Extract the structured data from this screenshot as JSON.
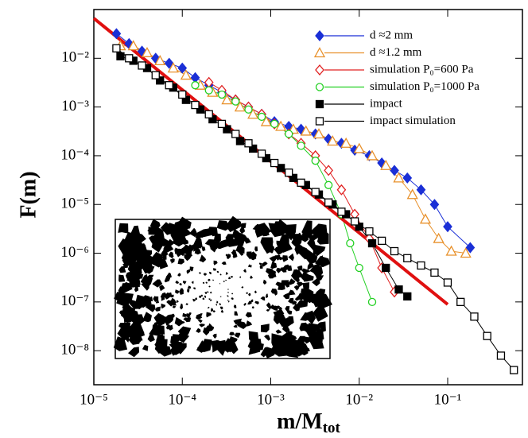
{
  "chart_data": {
    "type": "scatter",
    "log_x": true,
    "log_y": true,
    "xlabel": "m/M",
    "xlabel_sub": "tot",
    "ylabel": "F(m)",
    "xlim": [
      1e-05,
      0.7
    ],
    "ylim": [
      2e-09,
      0.1
    ],
    "xticks": [
      {
        "value": 1e-05,
        "label": "10⁻⁵"
      },
      {
        "value": 0.0001,
        "label": "10⁻⁴"
      },
      {
        "value": 0.001,
        "label": "10⁻³"
      },
      {
        "value": 0.01,
        "label": "10⁻²"
      },
      {
        "value": 0.1,
        "label": "10⁻¹"
      }
    ],
    "yticks": [
      {
        "value": 0.01,
        "label": "10⁻²"
      },
      {
        "value": 0.001,
        "label": "10⁻³"
      },
      {
        "value": 0.0001,
        "label": "10⁻⁴"
      },
      {
        "value": 1e-05,
        "label": "10⁻⁵"
      },
      {
        "value": 1e-06,
        "label": "10⁻⁶"
      },
      {
        "value": 1e-07,
        "label": "10⁻⁷"
      },
      {
        "value": 1e-08,
        "label": "10⁻⁸"
      }
    ],
    "series": [
      {
        "name": "d ≈2 mm",
        "color": "#1a2fd6",
        "marker": "diamond-filled",
        "x": [
          1.8e-05,
          2.5e-05,
          3.5e-05,
          5e-05,
          7.1e-05,
          0.0001,
          0.00014,
          0.0002,
          0.00028,
          0.0004,
          0.00056,
          0.00079,
          0.0011,
          0.0016,
          0.0022,
          0.0032,
          0.0045,
          0.0063,
          0.0089,
          0.013,
          0.018,
          0.025,
          0.035,
          0.05,
          0.071,
          0.1,
          0.18
        ],
        "values": [
          0.032,
          0.02,
          0.014,
          0.01,
          0.0079,
          0.0063,
          0.004,
          0.0028,
          0.002,
          0.0014,
          0.001,
          0.00071,
          0.0005,
          0.0004,
          0.00035,
          0.00028,
          0.00022,
          0.00018,
          0.00013,
          0.0001,
          7.1e-05,
          5e-05,
          3.5e-05,
          2e-05,
          1e-05,
          3.5e-06,
          1.3e-06
        ]
      },
      {
        "name": "d ≈1.2 mm",
        "color": "#e8902a",
        "marker": "triangle-open",
        "x": [
          2e-05,
          2.8e-05,
          4e-05,
          5.6e-05,
          7.9e-05,
          0.00011,
          0.00016,
          0.00022,
          0.00032,
          0.00045,
          0.00063,
          0.00089,
          0.0013,
          0.0018,
          0.0025,
          0.0035,
          0.005,
          0.0071,
          0.01,
          0.014,
          0.02,
          0.028,
          0.04,
          0.056,
          0.079,
          0.11,
          0.16
        ],
        "values": [
          0.018,
          0.018,
          0.013,
          0.0089,
          0.0063,
          0.0045,
          0.0028,
          0.002,
          0.0014,
          0.001,
          0.00071,
          0.0005,
          0.0004,
          0.00035,
          0.00032,
          0.00028,
          0.0002,
          0.00018,
          0.00014,
          0.0001,
          6.3e-05,
          3.5e-05,
          1.6e-05,
          5e-06,
          2e-06,
          1.1e-06,
          1e-06
        ]
      },
      {
        "name": "simulation P₀=600 Pa",
        "color": "#e02020",
        "marker": "diamond-open",
        "x": [
          0.0002,
          0.00028,
          0.0004,
          0.00056,
          0.00079,
          0.0011,
          0.0016,
          0.0022,
          0.0032,
          0.0045,
          0.0063,
          0.0089,
          0.013,
          0.018,
          0.025
        ],
        "values": [
          0.0032,
          0.0022,
          0.0014,
          0.001,
          0.00071,
          0.00045,
          0.00028,
          0.00018,
          0.0001,
          5e-05,
          2e-05,
          6.3e-06,
          2e-06,
          5e-07,
          1.6e-07
        ]
      },
      {
        "name": "simulation P₀=1000 Pa",
        "color": "#22d022",
        "marker": "circle-open",
        "x": [
          0.00014,
          0.0002,
          0.00028,
          0.0004,
          0.00056,
          0.00079,
          0.0011,
          0.0016,
          0.0022,
          0.0032,
          0.0045,
          0.0063,
          0.0079,
          0.01,
          0.014
        ],
        "values": [
          0.0028,
          0.0022,
          0.0018,
          0.0013,
          0.00089,
          0.00063,
          0.00045,
          0.00028,
          0.00016,
          7.9e-05,
          2.5e-05,
          6.3e-06,
          1.6e-06,
          5e-07,
          1e-07
        ]
      },
      {
        "name": "impact",
        "color": "#000000",
        "marker": "square-filled",
        "x": [
          2e-05,
          2.8e-05,
          4e-05,
          5.6e-05,
          7.9e-05,
          0.00011,
          0.00016,
          0.00022,
          0.00032,
          0.00045,
          0.00063,
          0.00089,
          0.0013,
          0.0018,
          0.0025,
          0.0035,
          0.005,
          0.0071,
          0.01,
          0.014,
          0.02,
          0.028,
          0.035
        ],
        "values": [
          0.011,
          0.0089,
          0.0063,
          0.0035,
          0.0025,
          0.0014,
          0.00089,
          0.00056,
          0.00035,
          0.0002,
          0.00014,
          8.9e-05,
          5.6e-05,
          3.5e-05,
          2.5e-05,
          1.6e-05,
          1e-05,
          6.3e-06,
          3.5e-06,
          1.6e-06,
          5e-07,
          1.8e-07,
          1.3e-07
        ]
      },
      {
        "name": "impact simulation",
        "color": "#000000",
        "marker": "square-open",
        "x": [
          1.8e-05,
          2.5e-05,
          3.5e-05,
          5e-05,
          7.1e-05,
          0.0001,
          0.00014,
          0.0002,
          0.00028,
          0.0004,
          0.00056,
          0.00079,
          0.0011,
          0.0016,
          0.0022,
          0.0032,
          0.0045,
          0.0063,
          0.0089,
          0.013,
          0.018,
          0.025,
          0.035,
          0.05,
          0.071,
          0.1,
          0.14,
          0.2,
          0.28,
          0.4,
          0.56
        ],
        "values": [
          0.016,
          0.01,
          0.0071,
          0.0045,
          0.0028,
          0.0018,
          0.0011,
          0.00071,
          0.00045,
          0.00028,
          0.00018,
          0.00011,
          7.1e-05,
          4.5e-05,
          2.8e-05,
          1.8e-05,
          1.1e-05,
          7.1e-06,
          4.5e-06,
          2.8e-06,
          1.8e-06,
          1.1e-06,
          7.9e-07,
          5.6e-07,
          4e-07,
          2.5e-07,
          1e-07,
          5e-08,
          2e-08,
          7.9e-09,
          4e-09
        ]
      },
      {
        "color": "#e01010",
        "marker": "line-thick",
        "x": [
          1e-05,
          0.1
        ],
        "values": [
          0.066,
          8.9e-08
        ]
      }
    ]
  }
}
